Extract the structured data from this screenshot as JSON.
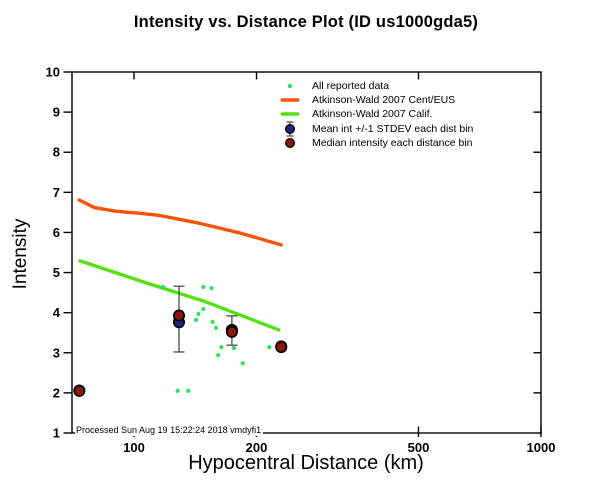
{
  "title": "Intensity vs. Distance Plot (ID us1000gda5)",
  "footer": "Processed Sun Aug 19 15:22:24 2018 vmdyfi1",
  "axes": {
    "x": {
      "label": "Hypocentral Distance (km)",
      "scale": "log",
      "ticks": [
        100,
        200,
        500,
        1000
      ],
      "range": [
        70,
        1000
      ]
    },
    "y": {
      "label": "Intensity",
      "scale": "linear",
      "ticks": [
        1,
        2,
        3,
        4,
        5,
        6,
        7,
        8,
        9,
        10
      ],
      "range": [
        1,
        10
      ]
    }
  },
  "legend": {
    "items": [
      {
        "label": "All reported data",
        "marker": "dot",
        "color": "#2EE060"
      },
      {
        "label": "Atkinson-Wald 2007 Cent/EUS",
        "marker": "line",
        "color": "#F85408"
      },
      {
        "label": "Atkinson-Wald 2007 Calif.",
        "marker": "line",
        "color": "#55E014"
      },
      {
        "label": "Mean int +/-1 STDEV each dist bin",
        "marker": "circle-errorbar",
        "color": "#1F2385"
      },
      {
        "label": "Median intensity each distance bin",
        "marker": "circle",
        "color": "#8A160C"
      }
    ]
  },
  "colors": {
    "frame": "#000000",
    "all_reported": "#2EE060",
    "aw2007_ceus": "#F85408",
    "aw2007_calif": "#55E014",
    "mean_bins": "#1F2385",
    "median_bins": "#8A160C",
    "errorbar": "#3C3C3C"
  },
  "chart_data": {
    "type": "scatter",
    "title": "Intensity vs. Distance Plot (ID us1000gda5)",
    "xlabel": "Hypocentral Distance (km)",
    "ylabel": "Intensity",
    "xscale": "log",
    "xlim": [
      70,
      1000
    ],
    "ylim": [
      1,
      10
    ],
    "xticks": [
      100,
      200,
      500,
      1000
    ],
    "yticks": [
      1,
      2,
      3,
      4,
      5,
      6,
      7,
      8,
      9,
      10
    ],
    "grid": false,
    "legend_position": "top-right-inside",
    "series": [
      {
        "id": "all-reported",
        "name": "All reported data",
        "type": "scatter",
        "color": "#2EE060",
        "r": 2.1,
        "points": [
          [
            118,
            4.64
          ],
          [
            148,
            4.64
          ],
          [
            155,
            4.61
          ],
          [
            148,
            4.09
          ],
          [
            144,
            3.97
          ],
          [
            142,
            3.82
          ],
          [
            126,
            3.82
          ],
          [
            156,
            3.77
          ],
          [
            159,
            3.62
          ],
          [
            164,
            3.14
          ],
          [
            176,
            3.12
          ],
          [
            215,
            3.14
          ],
          [
            161,
            2.94
          ],
          [
            185,
            2.74
          ],
          [
            128,
            2.05
          ],
          [
            136,
            2.05
          ]
        ]
      },
      {
        "id": "aw2007-ceus",
        "name": "Atkinson-Wald 2007 Cent/EUS",
        "type": "line",
        "color": "#F85408",
        "width": 3.4,
        "points": [
          [
            73.3,
            6.81
          ],
          [
            80,
            6.62
          ],
          [
            90,
            6.53
          ],
          [
            103,
            6.48
          ],
          [
            116,
            6.42
          ],
          [
            146,
            6.22
          ],
          [
            183,
            5.98
          ],
          [
            230,
            5.69
          ]
        ]
      },
      {
        "id": "aw2007-calif",
        "name": "Atkinson-Wald 2007 Calif.",
        "type": "line",
        "color": "#55E014",
        "width": 3.4,
        "points": [
          [
            73.7,
            5.29
          ],
          [
            106,
            4.76
          ],
          [
            150,
            4.27
          ],
          [
            227,
            3.57
          ]
        ]
      },
      {
        "id": "mean-bins",
        "name": "Mean int +/-1 STDEV each dist bin",
        "type": "mean-errorbar",
        "color": "#1F2385",
        "outline": "#000000",
        "r": 5.2,
        "bar_color": "#3C3C3C",
        "points": [
          {
            "x": 73.4,
            "y": 2.06
          },
          {
            "x": 129,
            "y": 3.76,
            "lo": 3.02,
            "hi": 4.66
          },
          {
            "x": 174,
            "y": 3.57,
            "lo": 3.19,
            "hi": 3.92
          },
          {
            "x": 230,
            "y": 3.16
          }
        ]
      },
      {
        "id": "median-bins",
        "name": "Median intensity each distance bin",
        "type": "median",
        "color": "#8A160C",
        "outline": "#000000",
        "r": 5.2,
        "points": [
          [
            73.4,
            2.05
          ],
          [
            129,
            3.93
          ],
          [
            174,
            3.52
          ],
          [
            230,
            3.14
          ]
        ]
      }
    ]
  }
}
